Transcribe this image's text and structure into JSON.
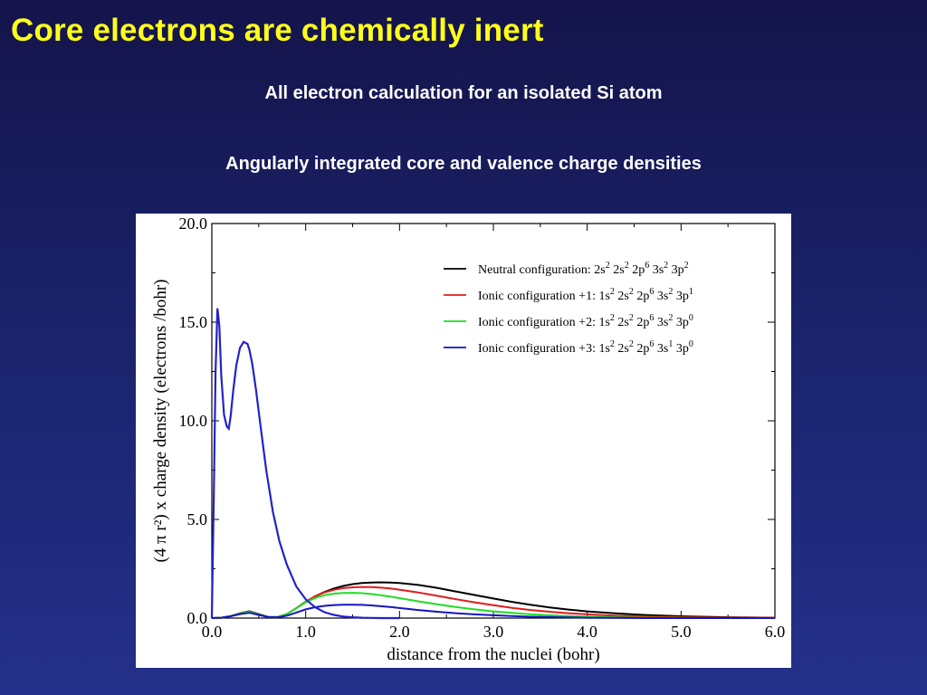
{
  "slide": {
    "title": "Core electrons are chemically inert",
    "subtitle_1": "All electron calculation for an isolated Si atom",
    "subtitle_2": "Angularly integrated core and valence charge densities",
    "title_color": "#ffff1a"
  },
  "chart_data": {
    "type": "line",
    "xlabel": "distance from the nuclei (bohr)",
    "ylabel": "(4 π r²) x charge density (electrons /bohr)",
    "xlim": [
      0,
      6
    ],
    "ylim": [
      0,
      20
    ],
    "x_ticks": [
      "0.0",
      "1.0",
      "2.0",
      "3.0",
      "4.0",
      "5.0",
      "6.0"
    ],
    "y_ticks": [
      "0.0",
      "5.0",
      "10.0",
      "15.0",
      "20.0"
    ],
    "legend_position": "top-right",
    "core": {
      "name": "core",
      "color": "#2323c8",
      "x": [
        0.0,
        0.02,
        0.04,
        0.06,
        0.08,
        0.1,
        0.13,
        0.16,
        0.18,
        0.2,
        0.23,
        0.26,
        0.3,
        0.34,
        0.38,
        0.4,
        0.43,
        0.47,
        0.52,
        0.58,
        0.65,
        0.72,
        0.8,
        0.9,
        1.0,
        1.1,
        1.2,
        1.3,
        1.4,
        1.5,
        1.6,
        1.7,
        1.8,
        1.9,
        2.0
      ],
      "y": [
        0.0,
        6.0,
        12.5,
        15.7,
        14.8,
        12.3,
        10.3,
        9.7,
        9.6,
        10.2,
        11.6,
        12.8,
        13.7,
        14.0,
        13.9,
        13.6,
        12.9,
        11.6,
        9.7,
        7.5,
        5.4,
        3.9,
        2.7,
        1.6,
        0.95,
        0.55,
        0.3,
        0.16,
        0.08,
        0.04,
        0.02,
        0.01,
        0.0,
        0.0,
        0.0
      ]
    },
    "valence_x": [
      0.0,
      0.1,
      0.2,
      0.3,
      0.4,
      0.5,
      0.6,
      0.7,
      0.8,
      0.9,
      1.0,
      1.1,
      1.2,
      1.3,
      1.4,
      1.5,
      1.6,
      1.7,
      1.8,
      1.9,
      2.0,
      2.2,
      2.4,
      2.6,
      2.8,
      3.0,
      3.2,
      3.4,
      3.6,
      3.8,
      4.0,
      4.3,
      4.6,
      5.0,
      5.5,
      6.0
    ],
    "series": [
      {
        "name": "Neutral configuration: 2s² 2s² 2p⁶ 3s² 3p²",
        "legend_main": "Neutral configuration: 2s",
        "legend_sup": [
          "2",
          "2",
          "6",
          "2",
          "2"
        ],
        "legend_mid": [
          "2s",
          "2p",
          "3s",
          "3p"
        ],
        "color": "#000000",
        "values": [
          0.0,
          0.02,
          0.1,
          0.25,
          0.35,
          0.2,
          0.06,
          0.05,
          0.2,
          0.5,
          0.82,
          1.1,
          1.32,
          1.5,
          1.63,
          1.72,
          1.78,
          1.8,
          1.81,
          1.8,
          1.78,
          1.68,
          1.53,
          1.35,
          1.17,
          0.99,
          0.82,
          0.67,
          0.54,
          0.43,
          0.34,
          0.24,
          0.16,
          0.09,
          0.04,
          0.02
        ]
      },
      {
        "name": "Ionic configuration +1: 1s² 2s² 2p⁶ 3s² 3p¹",
        "legend_main": "Ionic configuration +1: 1s",
        "legend_sup": [
          "2",
          "2",
          "6",
          "2",
          "1"
        ],
        "legend_mid": [
          "2s",
          "2p",
          "3s",
          "3p"
        ],
        "color": "#e01c1c",
        "values": [
          0.0,
          0.02,
          0.1,
          0.24,
          0.33,
          0.19,
          0.06,
          0.05,
          0.2,
          0.5,
          0.83,
          1.1,
          1.3,
          1.43,
          1.52,
          1.56,
          1.58,
          1.57,
          1.54,
          1.5,
          1.44,
          1.3,
          1.13,
          0.96,
          0.8,
          0.65,
          0.52,
          0.41,
          0.32,
          0.25,
          0.19,
          0.12,
          0.08,
          0.04,
          0.02,
          0.01
        ]
      },
      {
        "name": "Ionic configuration +2: 1s² 2s² 2p⁶ 3s² 3p⁰",
        "legend_main": "Ionic configuration +2: 1s",
        "legend_sup": [
          "2",
          "2",
          "6",
          "2",
          "0"
        ],
        "legend_mid": [
          "2s",
          "2p",
          "3s",
          "3p"
        ],
        "color": "#22dd22",
        "values": [
          0.0,
          0.02,
          0.1,
          0.23,
          0.31,
          0.18,
          0.06,
          0.05,
          0.2,
          0.5,
          0.8,
          1.02,
          1.16,
          1.24,
          1.27,
          1.28,
          1.26,
          1.22,
          1.16,
          1.09,
          1.01,
          0.85,
          0.7,
          0.56,
          0.44,
          0.34,
          0.26,
          0.19,
          0.14,
          0.1,
          0.07,
          0.04,
          0.02,
          0.01,
          0.0,
          0.0
        ]
      },
      {
        "name": "Ionic configuration +3: 1s² 2s² 2p⁶ 3s¹ 3p⁰",
        "legend_main": "Ionic configuration +3: 1s",
        "legend_sup": [
          "2",
          "2",
          "6",
          "1",
          "0"
        ],
        "legend_mid": [
          "2s",
          "2p",
          "3s",
          "3p"
        ],
        "color": "#1515c0",
        "values": [
          0.0,
          0.02,
          0.09,
          0.2,
          0.27,
          0.16,
          0.05,
          0.04,
          0.12,
          0.28,
          0.44,
          0.55,
          0.62,
          0.66,
          0.68,
          0.68,
          0.67,
          0.64,
          0.6,
          0.56,
          0.51,
          0.41,
          0.32,
          0.25,
          0.19,
          0.14,
          0.1,
          0.07,
          0.05,
          0.03,
          0.02,
          0.01,
          0.0,
          0.0,
          0.0,
          0.0
        ]
      }
    ]
  }
}
